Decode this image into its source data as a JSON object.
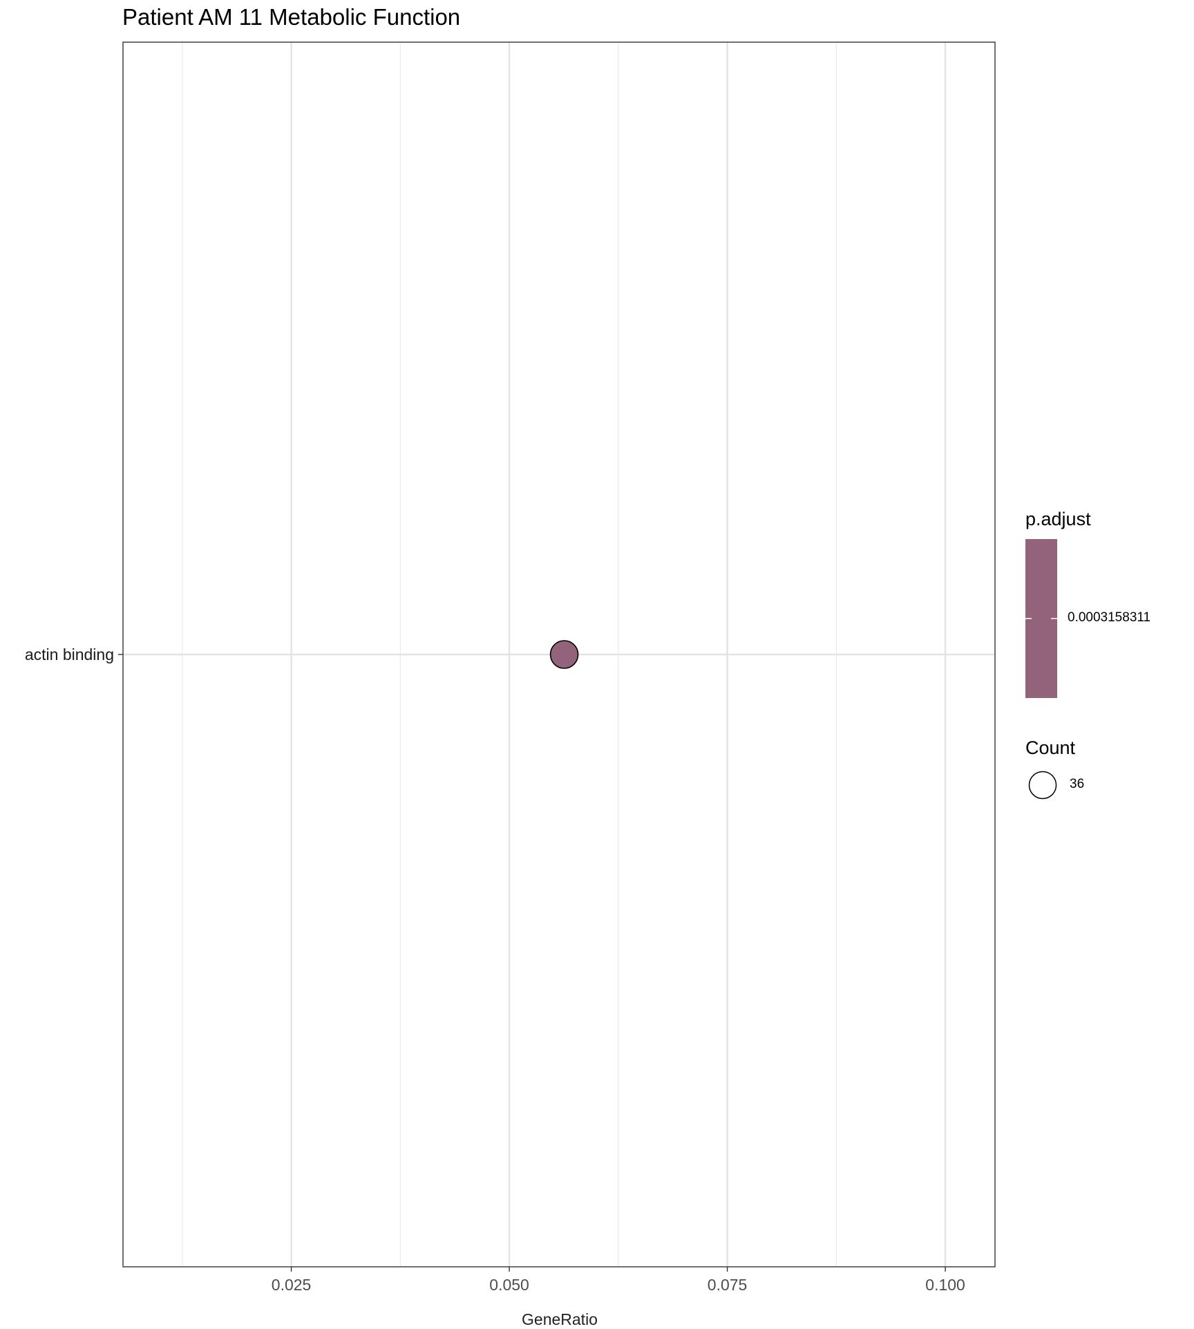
{
  "chart_data": {
    "type": "scatter",
    "title": "Patient AM 11 Metabolic Function",
    "xlabel": "GeneRatio",
    "ylabel": "",
    "xlim": [
      0.0057,
      0.1057
    ],
    "x_ticks": [
      "0.025",
      "0.050",
      "0.075",
      "0.100"
    ],
    "x_tick_values": [
      0.025,
      0.05,
      0.075,
      0.1
    ],
    "y_categories": [
      "actin binding"
    ],
    "points": [
      {
        "term": "actin binding",
        "GeneRatio": 0.0563,
        "Count": 36,
        "p_adjust": 0.0003158311,
        "color": "#93637b"
      }
    ],
    "grid": true,
    "legend_position": "right",
    "legends": {
      "color": {
        "title": "p.adjust",
        "label": "0.0003158311",
        "color": "#93637b"
      },
      "size": {
        "title": "Count",
        "label": "36"
      }
    }
  }
}
